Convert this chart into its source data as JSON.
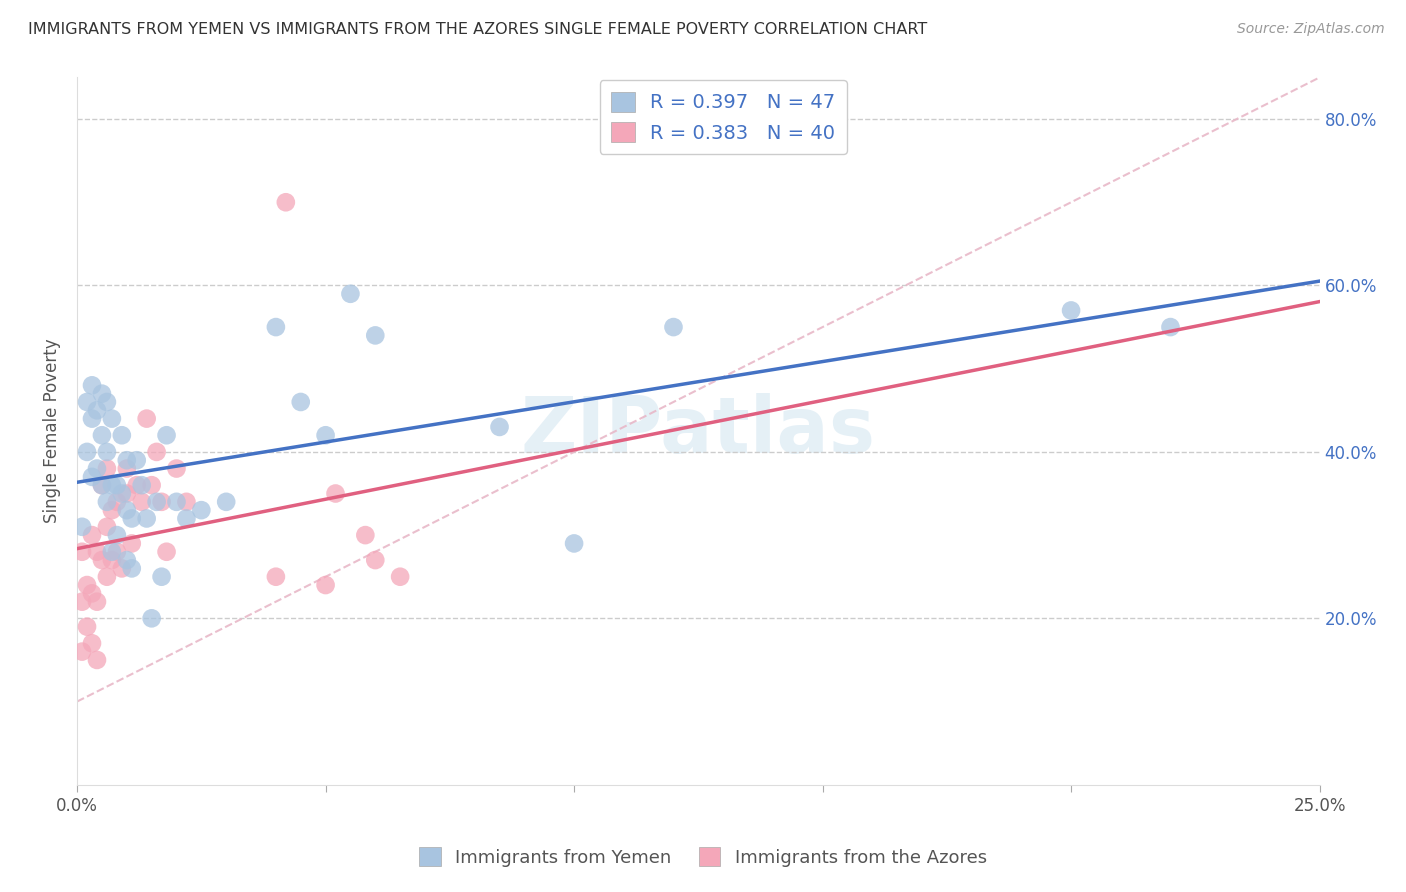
{
  "title": "IMMIGRANTS FROM YEMEN VS IMMIGRANTS FROM THE AZORES SINGLE FEMALE POVERTY CORRELATION CHART",
  "source": "Source: ZipAtlas.com",
  "ylabel": "Single Female Poverty",
  "xlim": [
    0.0,
    0.25
  ],
  "ylim": [
    0.0,
    0.85
  ],
  "xticks": [
    0.0,
    0.05,
    0.1,
    0.15,
    0.2,
    0.25
  ],
  "yticks": [
    0.0,
    0.2,
    0.4,
    0.6,
    0.8
  ],
  "ytick_labels": [
    "",
    "20.0%",
    "40.0%",
    "60.0%",
    "80.0%"
  ],
  "xtick_labels": [
    "0.0%",
    "",
    "",
    "",
    "",
    "25.0%"
  ],
  "color_yemen": "#a8c4e0",
  "color_azores": "#f4a7b9",
  "line_color_yemen": "#4472c4",
  "line_color_azores": "#e06080",
  "legend_r_yemen": "R = 0.397",
  "legend_n_yemen": "N = 47",
  "legend_r_azores": "R = 0.383",
  "legend_n_azores": "N = 40",
  "watermark": "ZIPatlas",
  "yemen_x": [
    0.001,
    0.002,
    0.002,
    0.003,
    0.003,
    0.003,
    0.004,
    0.004,
    0.005,
    0.005,
    0.005,
    0.006,
    0.006,
    0.006,
    0.007,
    0.007,
    0.007,
    0.008,
    0.008,
    0.009,
    0.009,
    0.01,
    0.01,
    0.01,
    0.011,
    0.011,
    0.012,
    0.013,
    0.014,
    0.015,
    0.016,
    0.017,
    0.018,
    0.02,
    0.022,
    0.025,
    0.03,
    0.04,
    0.045,
    0.05,
    0.055,
    0.06,
    0.085,
    0.1,
    0.12,
    0.2,
    0.22
  ],
  "yemen_y": [
    0.31,
    0.4,
    0.46,
    0.37,
    0.44,
    0.48,
    0.38,
    0.45,
    0.36,
    0.42,
    0.47,
    0.34,
    0.4,
    0.46,
    0.28,
    0.36,
    0.44,
    0.3,
    0.36,
    0.35,
    0.42,
    0.27,
    0.33,
    0.39,
    0.32,
    0.26,
    0.39,
    0.36,
    0.32,
    0.2,
    0.34,
    0.25,
    0.42,
    0.34,
    0.32,
    0.33,
    0.34,
    0.55,
    0.46,
    0.42,
    0.59,
    0.54,
    0.43,
    0.29,
    0.55,
    0.57,
    0.55
  ],
  "azores_x": [
    0.001,
    0.001,
    0.001,
    0.002,
    0.002,
    0.003,
    0.003,
    0.003,
    0.004,
    0.004,
    0.004,
    0.005,
    0.005,
    0.006,
    0.006,
    0.006,
    0.007,
    0.007,
    0.008,
    0.008,
    0.009,
    0.01,
    0.01,
    0.011,
    0.012,
    0.013,
    0.014,
    0.015,
    0.016,
    0.017,
    0.018,
    0.02,
    0.022,
    0.04,
    0.042,
    0.05,
    0.052,
    0.058,
    0.06,
    0.065
  ],
  "azores_y": [
    0.28,
    0.22,
    0.16,
    0.24,
    0.19,
    0.3,
    0.23,
    0.17,
    0.28,
    0.22,
    0.15,
    0.36,
    0.27,
    0.25,
    0.31,
    0.38,
    0.27,
    0.33,
    0.28,
    0.34,
    0.26,
    0.35,
    0.38,
    0.29,
    0.36,
    0.34,
    0.44,
    0.36,
    0.4,
    0.34,
    0.28,
    0.38,
    0.34,
    0.25,
    0.7,
    0.24,
    0.35,
    0.3,
    0.27,
    0.25
  ],
  "ref_line_x": [
    0.0,
    0.25
  ],
  "ref_line_y": [
    0.1,
    0.85
  ]
}
